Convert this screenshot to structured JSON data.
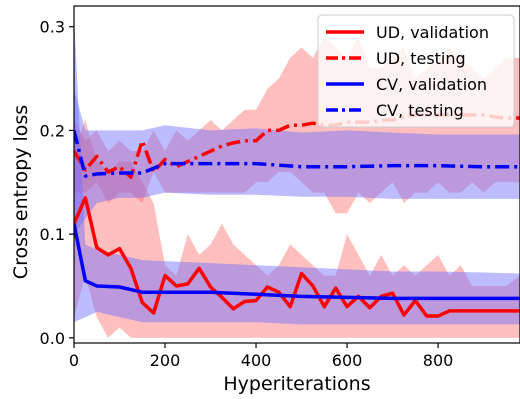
{
  "chart_data": {
    "type": "line",
    "xlabel": "Hyperiterations",
    "ylabel": "Cross entropy loss",
    "xlim": [
      0,
      980
    ],
    "ylim": [
      -0.005,
      0.32
    ],
    "xticks": [
      0,
      200,
      400,
      600,
      800
    ],
    "yticks": [
      0.0,
      0.1,
      0.2,
      0.3
    ],
    "xtick_labels": [
      "0",
      "200",
      "400",
      "600",
      "800"
    ],
    "ytick_labels": [
      "0.0",
      "0.1",
      "0.2",
      "0.3"
    ],
    "grid": false,
    "legend_position": "top-right",
    "bands": [
      {
        "color": "#ff6666",
        "opacity": 0.42,
        "x": [
          0,
          25,
          50,
          75,
          100,
          125,
          150,
          175,
          200,
          225,
          250,
          275,
          300,
          325,
          350,
          375,
          400,
          425,
          450,
          475,
          500,
          525,
          550,
          575,
          600,
          625,
          650,
          675,
          700,
          725,
          750,
          775,
          800,
          825,
          850,
          875,
          900,
          925,
          950,
          980
        ],
        "lower": [
          0.02,
          0.06,
          0.02,
          0.0,
          0.01,
          0.0,
          0.0,
          0.0,
          0.0,
          0.0,
          0.0,
          0.0,
          0.0,
          0.0,
          0.0,
          0.0,
          0.0,
          0.0,
          0.0,
          0.0,
          0.0,
          0.0,
          0.0,
          0.0,
          0.0,
          0.0,
          0.0,
          0.0,
          0.0,
          0.0,
          0.0,
          0.0,
          0.0,
          0.0,
          0.0,
          0.0,
          0.0,
          0.0,
          0.0,
          0.0
        ],
        "upper": [
          0.18,
          0.21,
          0.17,
          0.16,
          0.17,
          0.17,
          0.15,
          0.13,
          0.07,
          0.06,
          0.1,
          0.08,
          0.09,
          0.11,
          0.09,
          0.08,
          0.07,
          0.06,
          0.07,
          0.09,
          0.08,
          0.07,
          0.06,
          0.06,
          0.1,
          0.08,
          0.06,
          0.08,
          0.06,
          0.07,
          0.06,
          0.07,
          0.08,
          0.06,
          0.07,
          0.05,
          0.05,
          0.05,
          0.05,
          0.06
        ]
      },
      {
        "color": "#ff6666",
        "opacity": 0.42,
        "x": [
          0,
          25,
          50,
          75,
          100,
          125,
          150,
          175,
          200,
          225,
          250,
          275,
          300,
          325,
          350,
          375,
          400,
          425,
          450,
          475,
          500,
          525,
          550,
          575,
          600,
          625,
          650,
          675,
          700,
          725,
          750,
          775,
          800,
          825,
          850,
          875,
          900,
          925,
          950,
          980
        ],
        "lower": [
          0.14,
          0.14,
          0.15,
          0.13,
          0.14,
          0.14,
          0.13,
          0.16,
          0.14,
          0.14,
          0.14,
          0.14,
          0.14,
          0.14,
          0.14,
          0.14,
          0.15,
          0.15,
          0.16,
          0.16,
          0.15,
          0.14,
          0.14,
          0.12,
          0.12,
          0.14,
          0.13,
          0.14,
          0.15,
          0.13,
          0.14,
          0.14,
          0.15,
          0.14,
          0.14,
          0.15,
          0.14,
          0.15,
          0.15,
          0.15
        ],
        "upper": [
          0.21,
          0.19,
          0.2,
          0.18,
          0.19,
          0.18,
          0.18,
          0.2,
          0.18,
          0.2,
          0.19,
          0.2,
          0.21,
          0.2,
          0.21,
          0.22,
          0.22,
          0.24,
          0.25,
          0.27,
          0.28,
          0.27,
          0.29,
          0.28,
          0.27,
          0.29,
          0.26,
          0.26,
          0.27,
          0.28,
          0.25,
          0.26,
          0.27,
          0.28,
          0.27,
          0.26,
          0.25,
          0.26,
          0.27,
          0.27
        ]
      },
      {
        "color": "#6b6bff",
        "opacity": 0.45,
        "x": [
          0,
          25,
          50,
          100,
          150,
          200,
          300,
          400,
          500,
          600,
          700,
          800,
          900,
          980
        ],
        "lower": [
          0.015,
          0.02,
          0.025,
          0.02,
          0.015,
          0.015,
          0.015,
          0.015,
          0.013,
          0.013,
          0.013,
          0.013,
          0.013,
          0.013
        ],
        "upper": [
          0.31,
          0.09,
          0.085,
          0.08,
          0.075,
          0.074,
          0.072,
          0.07,
          0.068,
          0.066,
          0.064,
          0.064,
          0.063,
          0.062
        ]
      },
      {
        "color": "#6b6bff",
        "opacity": 0.45,
        "x": [
          0,
          25,
          50,
          100,
          150,
          200,
          300,
          400,
          500,
          600,
          700,
          800,
          900,
          980
        ],
        "lower": [
          0.1,
          0.115,
          0.13,
          0.135,
          0.135,
          0.14,
          0.138,
          0.138,
          0.136,
          0.136,
          0.134,
          0.134,
          0.134,
          0.134
        ],
        "upper": [
          0.24,
          0.2,
          0.2,
          0.2,
          0.2,
          0.205,
          0.2,
          0.202,
          0.198,
          0.2,
          0.198,
          0.196,
          0.196,
          0.196
        ]
      }
    ],
    "series": [
      {
        "name": "UD, validation",
        "color": "#ff0000",
        "dash": "solid",
        "x": [
          0,
          25,
          50,
          75,
          100,
          125,
          150,
          175,
          200,
          225,
          250,
          275,
          300,
          325,
          350,
          375,
          400,
          425,
          450,
          475,
          500,
          525,
          550,
          575,
          600,
          625,
          650,
          675,
          700,
          725,
          750,
          775,
          800,
          825,
          850,
          875,
          900,
          925,
          950,
          980
        ],
        "y": [
          0.11,
          0.135,
          0.087,
          0.08,
          0.086,
          0.067,
          0.034,
          0.024,
          0.06,
          0.05,
          0.052,
          0.067,
          0.049,
          0.039,
          0.028,
          0.035,
          0.036,
          0.049,
          0.044,
          0.03,
          0.062,
          0.05,
          0.03,
          0.048,
          0.03,
          0.04,
          0.029,
          0.04,
          0.043,
          0.022,
          0.036,
          0.021,
          0.021,
          0.026,
          0.026,
          0.026,
          0.026,
          0.026,
          0.026,
          0.026
        ]
      },
      {
        "name": "UD, testing",
        "color": "#ff0000",
        "dash": "dashdot",
        "x": [
          0,
          25,
          50,
          75,
          100,
          125,
          150,
          175,
          200,
          225,
          250,
          275,
          300,
          325,
          350,
          375,
          400,
          425,
          450,
          475,
          500,
          525,
          550,
          575,
          600,
          625,
          650,
          675,
          700,
          725,
          750,
          775,
          800,
          825,
          850,
          875,
          900,
          925,
          950,
          980
        ],
        "y": [
          0.18,
          0.162,
          0.175,
          0.16,
          0.165,
          0.155,
          0.19,
          0.16,
          0.172,
          0.165,
          0.17,
          0.175,
          0.18,
          0.185,
          0.188,
          0.19,
          0.19,
          0.2,
          0.2,
          0.205,
          0.205,
          0.207,
          0.205,
          0.205,
          0.208,
          0.208,
          0.208,
          0.21,
          0.21,
          0.213,
          0.215,
          0.215,
          0.215,
          0.215,
          0.215,
          0.215,
          0.215,
          0.213,
          0.212,
          0.212
        ]
      },
      {
        "name": "CV, validation",
        "color": "#0000ff",
        "dash": "solid",
        "x": [
          0,
          25,
          50,
          100,
          150,
          200,
          300,
          400,
          500,
          600,
          700,
          800,
          900,
          980
        ],
        "y": [
          0.11,
          0.055,
          0.05,
          0.049,
          0.044,
          0.044,
          0.044,
          0.042,
          0.04,
          0.039,
          0.038,
          0.038,
          0.038,
          0.038
        ]
      },
      {
        "name": "CV, testing",
        "color": "#0000ff",
        "dash": "dashdot",
        "x": [
          0,
          25,
          50,
          100,
          150,
          200,
          300,
          400,
          500,
          600,
          700,
          800,
          900,
          980
        ],
        "y": [
          0.2,
          0.156,
          0.158,
          0.159,
          0.159,
          0.168,
          0.168,
          0.168,
          0.165,
          0.165,
          0.166,
          0.166,
          0.165,
          0.165
        ]
      }
    ]
  }
}
